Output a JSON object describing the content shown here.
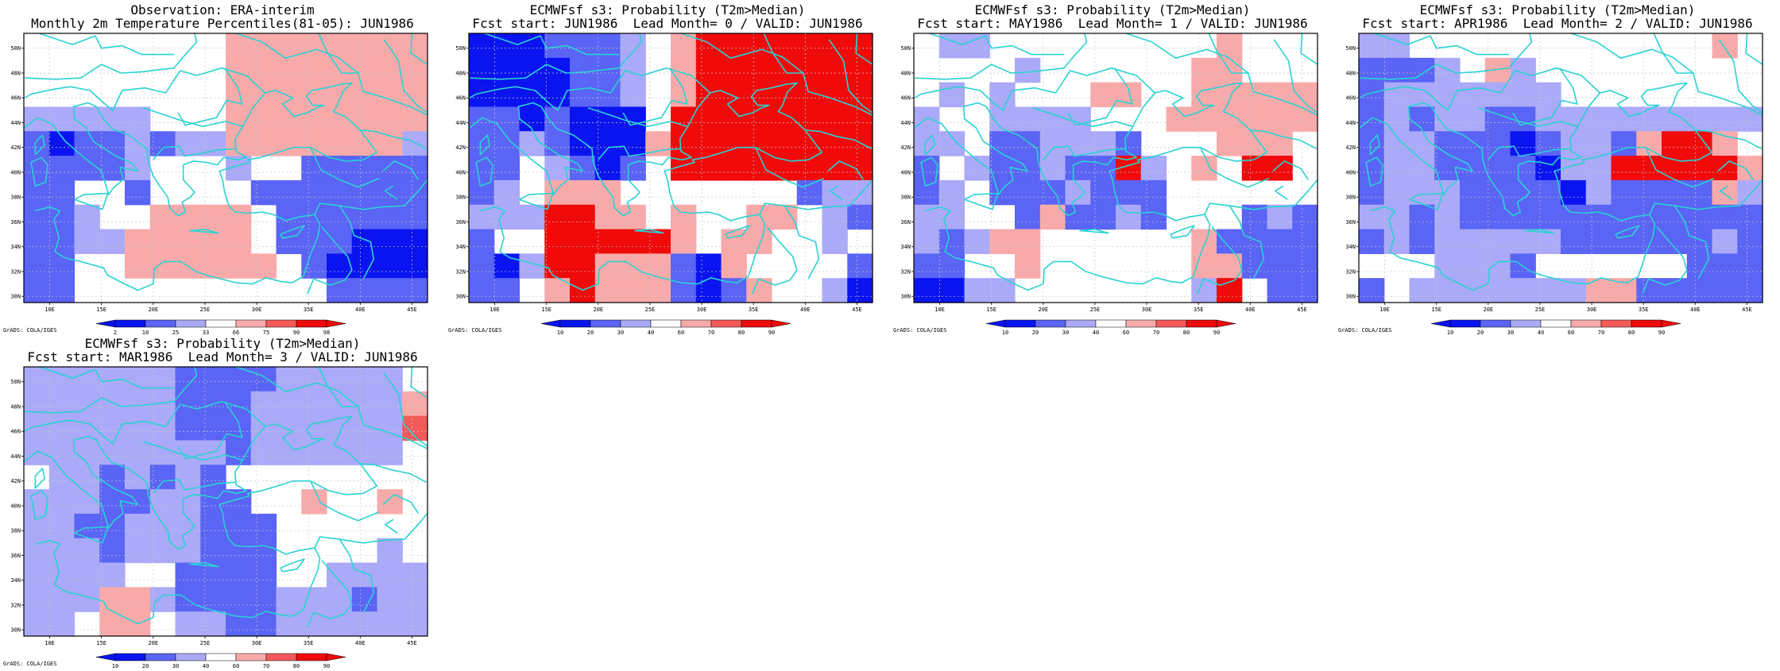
{
  "colors": {
    "dark_blue": "#0a14f0",
    "mid_blue": "#5a64f5",
    "light_blue": "#aaaaf8",
    "white": "#ffffff",
    "light_red": "#f8aaaa",
    "mid_red": "#f55a5a",
    "dark_red": "#f00a0a",
    "coast": "#2ad2d2",
    "grid": "#c8c8c8"
  },
  "axes": {
    "lon_labels": [
      "10E",
      "15E",
      "20E",
      "25E",
      "30E",
      "35E",
      "40E",
      "45E"
    ],
    "lat_labels": [
      "30N",
      "32N",
      "34N",
      "36N",
      "38N",
      "40N",
      "42N",
      "44N",
      "46N",
      "48N",
      "50N"
    ]
  },
  "credit": "GrADS: COLA/IGES",
  "panels": [
    {
      "title1": "Observation: ERA-interim",
      "title2": "Monthly 2m Temperature Percentiles(81-05): JUN1986",
      "colorbar_labels": [
        "2",
        "10",
        "25",
        "33",
        "66",
        "75",
        "90",
        "98"
      ],
      "grid": [
        "WWWWWWWWHHHHHHHH",
        "WWWWWWWWHHHHHHHH",
        "WWWWWWWWHHHHHHHH",
        "LLLLLWWWHHHHHHHH",
        "MBMMLMLLHHHHHHHL",
        "MMMMLWWWLWWMMMMM",
        "MMWWMWWWWMMMMMMM",
        "MMLWWHHHHWMMMMMM",
        "MMLLHHHHHWMMMBBB",
        "MMWWHHHHHHWMBBBB",
        "MMWWWWWWWWWWMMMM"
      ]
    },
    {
      "title1": "ECMWFsf s3: Probability (T2m>Median)",
      "title2": "Fcst start: JUN1986  Lead Month= 0 / VALID: JUN1986",
      "colorbar_labels": [
        "10",
        "20",
        "30",
        "40",
        "60",
        "70",
        "80",
        "90"
      ],
      "grid": [
        "BBBMMMLWHRRRRRRR",
        "BBBBMMLWHRRRRRRR",
        "BBBBMMLWHRRRRRRR",
        "MMBMBBBWRRRRRRRR",
        "MMLMBBBHRRRRRRRR",
        "MMWLMBMWRRRRRRRR",
        "MLWHHHWWWWWWWMLL",
        "LLLRRHHWHWWHHWLM",
        "MWWRRRRRHWHHWWLW",
        "MBLRRHHHMBHWWWWM",
        "MMWHRHHHMBMHWWLB"
      ]
    },
    {
      "title1": "ECMWFsf s3: Probability (T2m>Median)",
      "title2": "Fcst start: MAY1986  Lead Month= 1 / VALID: JUN1986",
      "colorbar_labels": [
        "10",
        "20",
        "30",
        "40",
        "60",
        "70",
        "80",
        "90"
      ],
      "grid": [
        "WLLWWWWWWWWWHWWW",
        "WWWWLWWWWWWHHWWW",
        "WLWLWWWHHWWHHHHH",
        "LWWLLLLWWWHHHHHH",
        "LLWMMLLLMWWWHHHW",
        "MWLMMLMMRLWHWRRW",
        "MLWMMMLMMMWWWWWW",
        "LLWWMHMMLMWWWMLM",
        "LMLHHWWWWWWHMMMM",
        "MMWWHWWWWWWHHMMM",
        "BBLLWWWWWWWLRWMM"
      ]
    },
    {
      "title1": "ECMWFsf s3: Probability (T2m>Median)",
      "title2": "Fcst start: APR1986  Lead Month= 2 / VALID: JUN1986",
      "colorbar_labels": [
        "10",
        "20",
        "30",
        "40",
        "60",
        "70",
        "80",
        "90"
      ],
      "grid": [
        "LLWWWWWWWWWWWWHW",
        "MMMLWHLWWWWWWWWW",
        "MLLLLLLLWWWWWWWW",
        "MLMLLMMLLLLLLLLL",
        "MLLMMMBMLLMHRRHW",
        "MLLMMMMBLLRRRRRH",
        "MLLLMMMMBLMMMMHL",
        "LLMLMMMMMMMMMMMM",
        "MLMLLLLLMMMMMMLM",
        "WWWLLLMWWWWWWMMM",
        "MWLLLLLLLHHMMMMM"
      ]
    },
    {
      "title1": "ECMWFsf s3: Probability (T2m>Median)",
      "title2": "Fcst start: MAR1986  Lead Month= 3 / VALID: JUN1986",
      "colorbar_labels": [
        "10",
        "20",
        "30",
        "40",
        "60",
        "70",
        "80",
        "90"
      ],
      "grid": [
        "LLLLLLMMMMLLLLLW",
        "LLLLLLMMMLLLLLLH",
        "LLLLLLMMMLLLLLLI",
        "LLLLLLLLMLLLLLLW",
        "WLLMLMLMWWWWWWWW",
        "LLLMMLLMMWWHWWHW",
        "LLMMLLLMMMWWWWWW",
        "LLLMLLLMMMWWWWLW",
        "LLLLWWMMMMWWLLLL",
        "LLLHHLMMMMLLLMLL",
        "LLWHHWLLMMLLLLLL"
      ]
    }
  ]
}
